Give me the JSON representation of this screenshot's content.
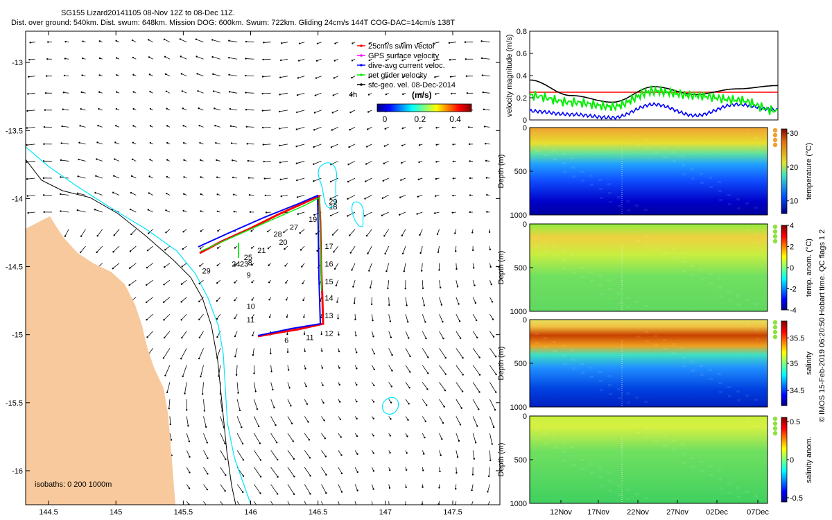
{
  "title": {
    "line1": "SG155 Lizard20141105 08-Nov 12Z to 08-Dec 11Z.",
    "line2": "Dist. over ground: 540km. Dist. swum: 648km. Mission DOG: 600km. Swum: 722km. Gliding 24cm/s 144T COG-DAC=14cm/s 138T"
  },
  "colors": {
    "land": "#f8c99c",
    "contour_200": "#000000",
    "contour_1000": "#00e6ff",
    "swim_vector": "#ff0000",
    "gps_velocity": "#ff00ff",
    "dac_velocity": "#0000ff",
    "net_velocity": "#00ee00",
    "sfc_geo": "#000000"
  },
  "map": {
    "legend": [
      {
        "label": "25cm/s swim vector",
        "color": "#ff0000"
      },
      {
        "label": "GPS surface velocity",
        "color": "#ff00ff"
      },
      {
        "label": "dive-avg current veloc.",
        "color": "#0000ff"
      },
      {
        "label": "net glider velocity",
        "color": "#00ee00"
      },
      {
        "label": "sfc-geo. vel. 08-Dec-2014",
        "color": "#000000"
      }
    ],
    "tag_4h": "4h",
    "colorbar_unit": "(m/s)",
    "colorbar_ticks": [
      "0",
      "0.2",
      "0.4"
    ],
    "isobaths_text": "isobaths: 0   200  1000m",
    "x_ticks": [
      {
        "v": 144.5,
        "label": "144.5"
      },
      {
        "v": 145,
        "label": "145"
      },
      {
        "v": 145.5,
        "label": "145.5"
      },
      {
        "v": 146,
        "label": "146"
      },
      {
        "v": 146.5,
        "label": "146.5"
      },
      {
        "v": 147,
        "label": "147"
      },
      {
        "v": 147.5,
        "label": "147.5"
      }
    ],
    "y_ticks": [
      {
        "v": -13,
        "label": "-13"
      },
      {
        "v": -13.5,
        "label": "-13.5"
      },
      {
        "v": -14,
        "label": "-14"
      },
      {
        "v": -14.5,
        "label": "-14.5"
      },
      {
        "v": -15,
        "label": "-15"
      },
      {
        "v": -15.5,
        "label": "-15.5"
      },
      {
        "v": -16,
        "label": "-16"
      }
    ],
    "track_days": [
      {
        "label": "6",
        "lon": 146.25,
        "lat": -15.04
      },
      {
        "label": "8",
        "lon": 145.98,
        "lat": -14.47
      },
      {
        "label": "9",
        "lon": 145.97,
        "lat": -14.56
      },
      {
        "label": "10",
        "lon": 145.97,
        "lat": -14.79
      },
      {
        "label": "11",
        "lon": 145.97,
        "lat": -14.89
      },
      {
        "label": "11",
        "lon": 146.41,
        "lat": -15.02
      },
      {
        "label": "12",
        "lon": 146.55,
        "lat": -14.99
      },
      {
        "label": "13",
        "lon": 146.55,
        "lat": -14.86
      },
      {
        "label": "14",
        "lon": 146.55,
        "lat": -14.73
      },
      {
        "label": "15",
        "lon": 146.55,
        "lat": -14.61
      },
      {
        "label": "16",
        "lon": 146.55,
        "lat": -14.48
      },
      {
        "label": "17",
        "lon": 146.55,
        "lat": -14.35
      },
      {
        "label": "18",
        "lon": 146.58,
        "lat": -14.06
      },
      {
        "label": "19",
        "lon": 146.43,
        "lat": -14.15
      },
      {
        "label": "20",
        "lon": 146.21,
        "lat": -14.32
      },
      {
        "label": "21",
        "lon": 146.05,
        "lat": -14.38
      },
      {
        "label": "23",
        "lon": 145.92,
        "lat": -14.48
      },
      {
        "label": "24",
        "lon": 145.86,
        "lat": -14.48
      },
      {
        "label": "25",
        "lon": 145.95,
        "lat": -14.43
      },
      {
        "label": "27",
        "lon": 146.29,
        "lat": -14.21
      },
      {
        "label": "28",
        "lon": 146.17,
        "lat": -14.26
      },
      {
        "label": "29",
        "lon": 145.64,
        "lat": -14.53
      },
      {
        "label": "29",
        "lon": 146.58,
        "lat": -14.02
      }
    ]
  },
  "velocity_panel": {
    "ylabel": "velocity magnitude (m/s)",
    "y_ticks": [
      0,
      0.2,
      0.4,
      0.6,
      0.8
    ]
  },
  "section_panels": [
    {
      "ylabel": "Depth (m)",
      "cbar_label": "temperature (°C)",
      "cbar_ticks": [
        "30",
        "20",
        "10"
      ]
    },
    {
      "ylabel": "Depth (m)",
      "cbar_label": "temp. anom. (°C)",
      "cbar_ticks": [
        "4",
        "2",
        "0",
        "-2",
        "-4"
      ]
    },
    {
      "ylabel": "Depth (m)",
      "cbar_label": "salinity",
      "cbar_ticks": [
        "35.5",
        "35",
        "34.5"
      ]
    },
    {
      "ylabel": "Depth (m)",
      "cbar_label": "salinity anom.",
      "cbar_ticks": [
        "0.5",
        "0",
        "-0.5"
      ]
    }
  ],
  "depth_ticks": [
    "0",
    "500",
    "1000"
  ],
  "time_axis_labels": [
    "12Nov",
    "17Nov",
    "22Nov",
    "27Nov",
    "02Dec",
    "07Dec"
  ],
  "copyright": "© IMOS 15-Feb-2019 06:20:50 Hobart time. QC flags 1  2",
  "chart_data": [
    {
      "type": "line",
      "title": "",
      "xlabel": "",
      "ylabel": "velocity magnitude (m/s)",
      "ylim": [
        0,
        0.8
      ],
      "x": [
        "2014-11-08",
        "2014-11-13",
        "2014-11-18",
        "2014-11-23",
        "2014-11-28",
        "2014-12-03",
        "2014-12-08"
      ],
      "series": [
        {
          "color": "#ff0000",
          "values": [
            0.25,
            0.25,
            0.25,
            0.25,
            0.25,
            0.25,
            0.25
          ]
        },
        {
          "color": "#000000",
          "values": [
            0.36,
            0.22,
            0.16,
            0.3,
            0.23,
            0.28,
            0.31
          ]
        },
        {
          "color": "#0000ff",
          "values": [
            0.08,
            0.05,
            0.02,
            0.14,
            0.04,
            0.14,
            0.09
          ]
        },
        {
          "color": "#00ee00",
          "values": [
            0.22,
            0.16,
            0.12,
            0.26,
            0.22,
            0.18,
            0.08
          ]
        }
      ]
    },
    {
      "type": "heatmap",
      "xlabel": "",
      "ylabel": "Depth (m)",
      "ylim": [
        1000,
        0
      ],
      "clim": [
        5,
        31
      ],
      "colorbar": "temperature (°C)"
    },
    {
      "type": "heatmap",
      "xlabel": "",
      "ylabel": "Depth (m)",
      "ylim": [
        1000,
        0
      ],
      "clim": [
        -4,
        4
      ],
      "colorbar": "temp. anom. (°C)"
    },
    {
      "type": "heatmap",
      "xlabel": "",
      "ylabel": "Depth (m)",
      "ylim": [
        1000,
        0
      ],
      "clim": [
        34.3,
        35.9
      ],
      "colorbar": "salinity"
    },
    {
      "type": "heatmap",
      "xlabel": "",
      "ylabel": "Depth (m)",
      "ylim": [
        1000,
        0
      ],
      "clim": [
        -0.5,
        0.5
      ],
      "colorbar": "salinity anom."
    }
  ]
}
